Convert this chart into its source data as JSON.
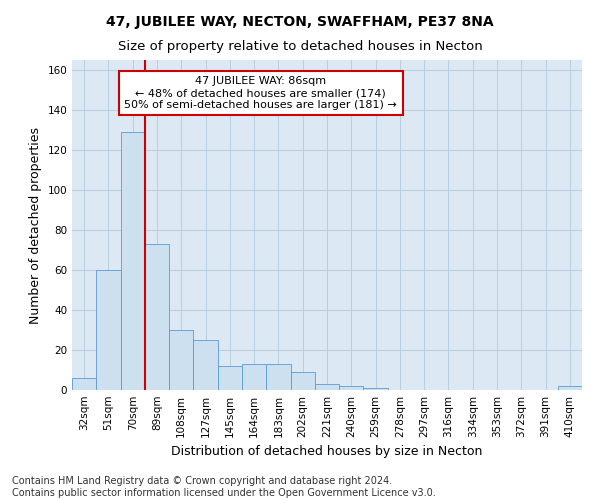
{
  "title": "47, JUBILEE WAY, NECTON, SWAFFHAM, PE37 8NA",
  "subtitle": "Size of property relative to detached houses in Necton",
  "xlabel": "Distribution of detached houses by size in Necton",
  "ylabel": "Number of detached properties",
  "categories": [
    "32sqm",
    "51sqm",
    "70sqm",
    "89sqm",
    "108sqm",
    "127sqm",
    "145sqm",
    "164sqm",
    "183sqm",
    "202sqm",
    "221sqm",
    "240sqm",
    "259sqm",
    "278sqm",
    "297sqm",
    "316sqm",
    "334sqm",
    "353sqm",
    "372sqm",
    "391sqm",
    "410sqm"
  ],
  "values": [
    6,
    60,
    129,
    73,
    30,
    25,
    12,
    13,
    13,
    9,
    3,
    2,
    1,
    0,
    0,
    0,
    0,
    0,
    0,
    0,
    2
  ],
  "bar_color": "#cce0f0",
  "bar_edge_color": "#5b9bd5",
  "bar_width": 1.0,
  "vline_color": "#cc0000",
  "annotation_line1": "47 JUBILEE WAY: 86sqm",
  "annotation_line2": "← 48% of detached houses are smaller (174)",
  "annotation_line3": "50% of semi-detached houses are larger (181) →",
  "annotation_box_color": "#ffffff",
  "annotation_box_edge": "#cc0000",
  "ylim": [
    0,
    165
  ],
  "yticks": [
    0,
    20,
    40,
    60,
    80,
    100,
    120,
    140,
    160
  ],
  "footer1": "Contains HM Land Registry data © Crown copyright and database right 2024.",
  "footer2": "Contains public sector information licensed under the Open Government Licence v3.0.",
  "bg_color": "#ffffff",
  "plot_bg_color": "#dce8f4",
  "grid_color": "#b8cede",
  "title_fontsize": 10,
  "subtitle_fontsize": 9.5,
  "axis_label_fontsize": 9,
  "tick_fontsize": 7.5,
  "annotation_fontsize": 8,
  "footer_fontsize": 7
}
